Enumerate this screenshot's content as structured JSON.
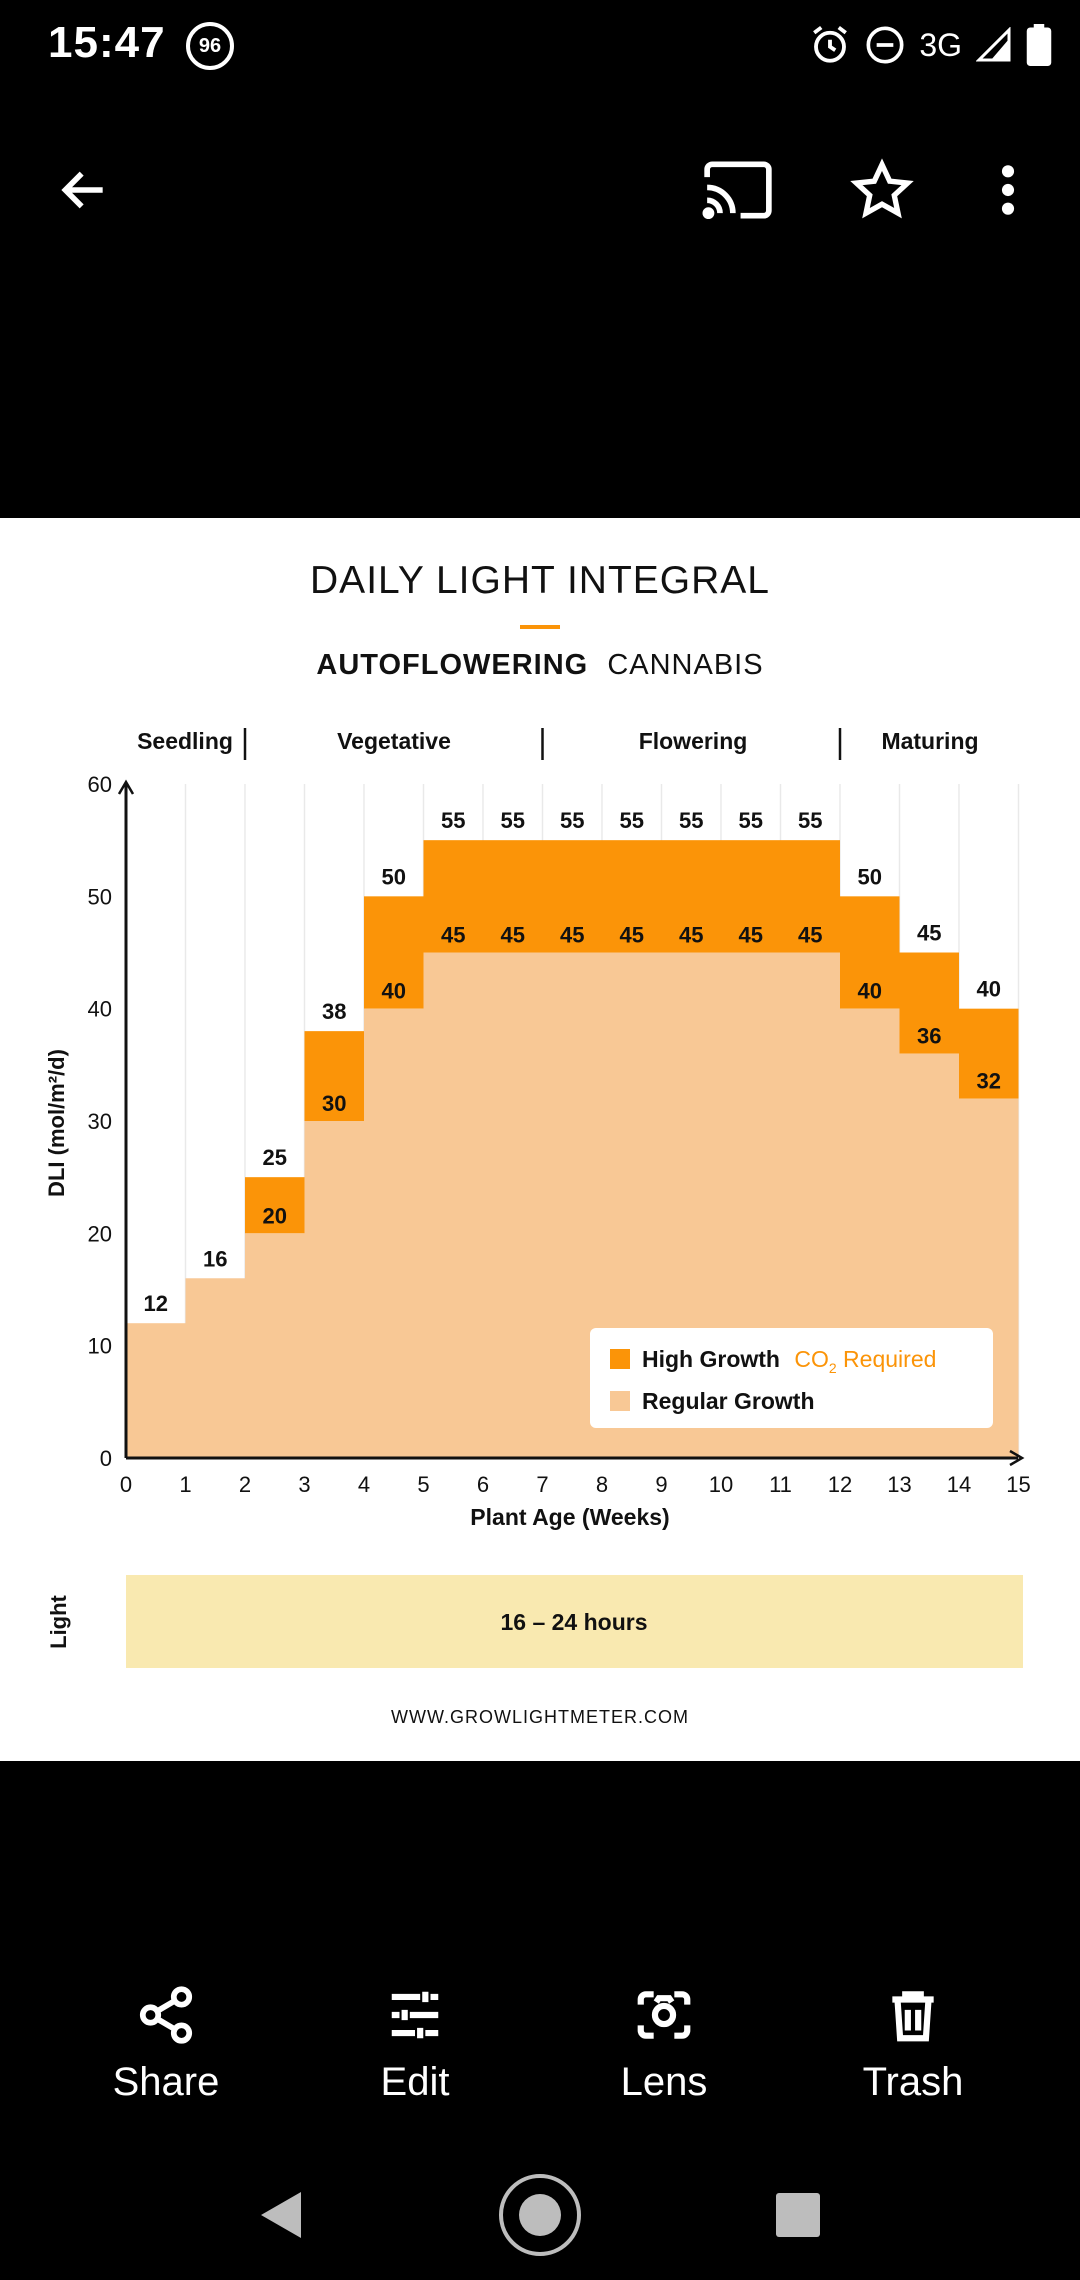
{
  "status_bar": {
    "time": "15:47",
    "notification_badge": "96",
    "network": "3G",
    "icons": [
      "alarm-icon",
      "do-not-disturb-icon",
      "signal-icon",
      "battery-icon"
    ]
  },
  "toolbar": {
    "icons": [
      "back-arrow-icon",
      "cast-icon",
      "star-icon",
      "more-vert-icon"
    ]
  },
  "infographic": {
    "title": "DAILY LIGHT INTEGRAL",
    "subtitle_bold": "AUTOFLOWERING",
    "subtitle_rest": "CANNABIS",
    "stages": [
      "Seedling",
      "Vegetative",
      "Flowering",
      "Maturing"
    ],
    "light_row_label": "Light",
    "light_hours": "16 – 24 hours",
    "website": "WWW.GROWLIGHTMETER.COM"
  },
  "chart_data": {
    "type": "bar",
    "stacked": true,
    "x_ticks": [
      "0",
      "1",
      "2",
      "3",
      "4",
      "5",
      "6",
      "7",
      "8",
      "9",
      "10",
      "11",
      "12",
      "13",
      "14",
      "15"
    ],
    "xlabel": "Plant Age (Weeks)",
    "ylabel": "DLI (mol/m²/d)",
    "ylim": [
      0,
      60
    ],
    "y_ticks": [
      "0",
      "10",
      "20",
      "30",
      "40",
      "50",
      "60"
    ],
    "bins": [
      [
        0,
        1
      ],
      [
        1,
        2
      ],
      [
        2,
        3
      ],
      [
        3,
        4
      ],
      [
        4,
        5
      ],
      [
        5,
        6
      ],
      [
        6,
        7
      ],
      [
        7,
        8
      ],
      [
        8,
        9
      ],
      [
        9,
        10
      ],
      [
        10,
        11
      ],
      [
        11,
        12
      ],
      [
        12,
        13
      ],
      [
        13,
        14
      ],
      [
        14,
        15
      ]
    ],
    "regular_growth": [
      12,
      16,
      20,
      30,
      40,
      45,
      45,
      45,
      45,
      45,
      45,
      45,
      40,
      36,
      32
    ],
    "high_growth_total": [
      12,
      16,
      25,
      38,
      50,
      55,
      55,
      55,
      55,
      55,
      55,
      55,
      50,
      45,
      40
    ],
    "high_growth_labels": [
      "",
      "",
      "20",
      "30",
      "40",
      "45",
      "45",
      "45",
      "45",
      "45",
      "45",
      "45",
      "40",
      "36",
      "32"
    ],
    "top_labels": [
      "12",
      "16",
      "25",
      "38",
      "50",
      "55",
      "55",
      "55",
      "55",
      "55",
      "55",
      "55",
      "50",
      "45",
      "40"
    ],
    "stage_dividers": [
      2,
      7,
      12
    ],
    "legend": {
      "high": "High Growth",
      "co2": "CO",
      "co2_sub": "2",
      "co2_rest": " Required",
      "regular": "Regular Growth",
      "position": "bottom-right"
    },
    "colors": {
      "high": "#FB9408",
      "regular": "#F8C895",
      "co2_text": "#FB9408",
      "light_band": "#F9E9B0",
      "accent_underline": "#FB9408"
    }
  },
  "actions": [
    {
      "label": "Share",
      "icon": "share-icon"
    },
    {
      "label": "Edit",
      "icon": "tune-sliders-icon"
    },
    {
      "label": "Lens",
      "icon": "lens-camera-icon"
    },
    {
      "label": "Trash",
      "icon": "trash-icon"
    }
  ],
  "nav_bar": {
    "icons": [
      "back-triangle-icon",
      "home-circle-icon",
      "recents-square-icon"
    ]
  }
}
